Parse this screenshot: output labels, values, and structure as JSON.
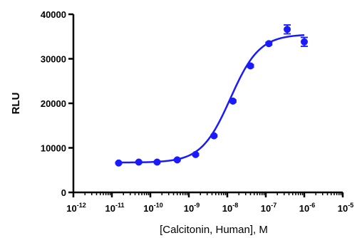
{
  "chart_data": {
    "type": "scatter",
    "xlabel": "[Calcitonin, Human], M",
    "ylabel": "RLU",
    "xscale": "log",
    "xlim": [
      1e-12,
      1e-05
    ],
    "ylim": [
      0,
      40000
    ],
    "grid": false,
    "legend": "none",
    "x_tick_labels": [
      {
        "base": "10",
        "exp": "-12"
      },
      {
        "base": "10",
        "exp": "-11"
      },
      {
        "base": "10",
        "exp": "-10"
      },
      {
        "base": "10",
        "exp": "-9"
      },
      {
        "base": "10",
        "exp": "-8"
      },
      {
        "base": "10",
        "exp": "-7"
      },
      {
        "base": "10",
        "exp": "-6"
      },
      {
        "base": "10",
        "exp": "-5"
      }
    ],
    "y_ticks": [
      "0",
      "10000",
      "20000",
      "30000",
      "40000"
    ],
    "series": [
      {
        "color": "#1a1aff",
        "points": [
          {
            "x": 1.5e-11,
            "y": 6600,
            "err": 150
          },
          {
            "x": 5e-11,
            "y": 6800,
            "err": 150
          },
          {
            "x": 1.5e-10,
            "y": 6800,
            "err": 150
          },
          {
            "x": 5e-10,
            "y": 7300,
            "err": 150
          },
          {
            "x": 1.5e-09,
            "y": 8500,
            "err": 200
          },
          {
            "x": 4.5e-09,
            "y": 12700,
            "err": 200
          },
          {
            "x": 1.4e-08,
            "y": 20500,
            "err": 250
          },
          {
            "x": 4e-08,
            "y": 28400,
            "err": 300
          },
          {
            "x": 1.2e-07,
            "y": 33400,
            "err": 300
          },
          {
            "x": 3.6e-07,
            "y": 36600,
            "err": 1000
          },
          {
            "x": 1e-06,
            "y": 33800,
            "err": 1000
          }
        ],
        "fit": {
          "bottom": 6700,
          "top": 35500,
          "log_ec50": -7.92,
          "hill": 1.15
        }
      }
    ]
  }
}
